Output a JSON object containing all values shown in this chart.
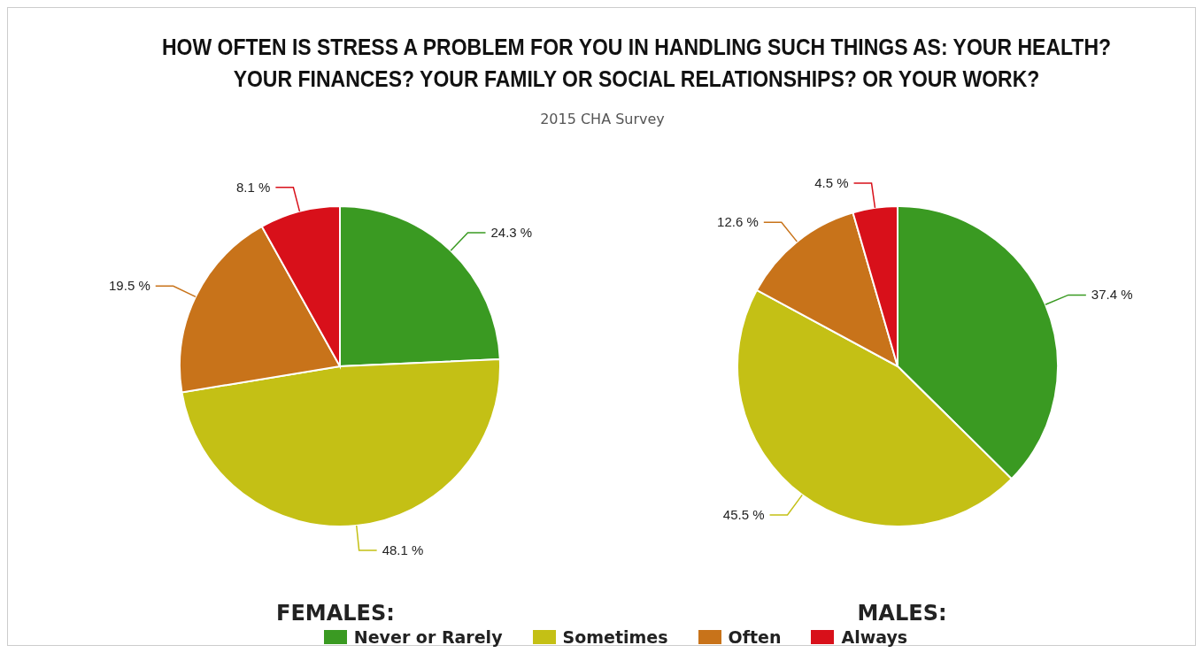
{
  "chart_data": [
    {
      "type": "pie",
      "title": "HOW OFTEN IS STRESS A PROBLEM FOR YOU IN HANDLING SUCH THINGS AS: YOUR HEALTH? YOUR FINANCES? YOUR FAMILY OR SOCIAL RELATIONSHIPS? OR YOUR WORK?",
      "subtitle": "2015 CHA Survey",
      "xlabel": "FEMALES:",
      "categories": [
        "Never or Rarely",
        "Sometimes",
        "Often",
        "Always"
      ],
      "values": [
        24.3,
        48.1,
        19.5,
        8.1
      ],
      "colors": [
        "#3a9a22",
        "#c4c015",
        "#c8731a",
        "#d8101a"
      ],
      "value_labels": [
        "24.3 %",
        "48.1 %",
        "19.5 %",
        "8.1 %"
      ],
      "legend": "bottom"
    },
    {
      "type": "pie",
      "xlabel": "MALES:",
      "categories": [
        null,
        null,
        null,
        null
      ],
      "values": [
        37.4,
        45.5,
        12.6,
        4.5
      ],
      "colors": [
        "#3a9a22",
        "#c4c015",
        "#c8731a",
        "#d8101a"
      ],
      "value_labels": [
        "37.4 %",
        "45.5 %",
        "12.6 %",
        "4.5 %"
      ]
    }
  ]
}
